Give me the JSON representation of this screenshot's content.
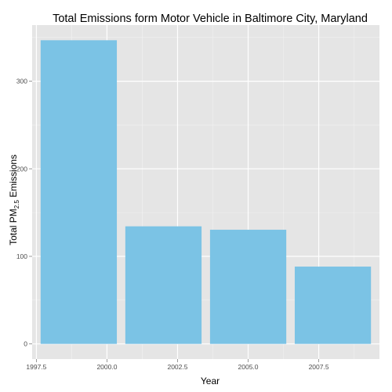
{
  "chart_data": {
    "type": "bar",
    "title": "Total Emissions form Motor Vehicle in Baltimore City, Maryland",
    "xlabel": "Year",
    "ylabel_main": "Total PM",
    "ylabel_sub": "2.5",
    "ylabel_tail": " Emissions",
    "x": [
      1999,
      2002,
      2005,
      2008
    ],
    "values": [
      346.8,
      134.3,
      130.4,
      88.3
    ],
    "bar_width_years": 2.7,
    "xlim": [
      1997.35,
      2009.65
    ],
    "ylim": [
      -17.3,
      364.1
    ],
    "xticks": [
      1997.5,
      2000.0,
      2002.5,
      2005.0,
      2007.5
    ],
    "xtick_labels": [
      "1997.5",
      "2000.0",
      "2002.5",
      "2005.0",
      "2007.5"
    ],
    "yticks": [
      0,
      100,
      200,
      300
    ],
    "ytick_labels": [
      "0",
      "100",
      "200",
      "300"
    ],
    "bar_color": "#7bc3e5",
    "panel_color": "#e5e5e5",
    "grid": true
  }
}
